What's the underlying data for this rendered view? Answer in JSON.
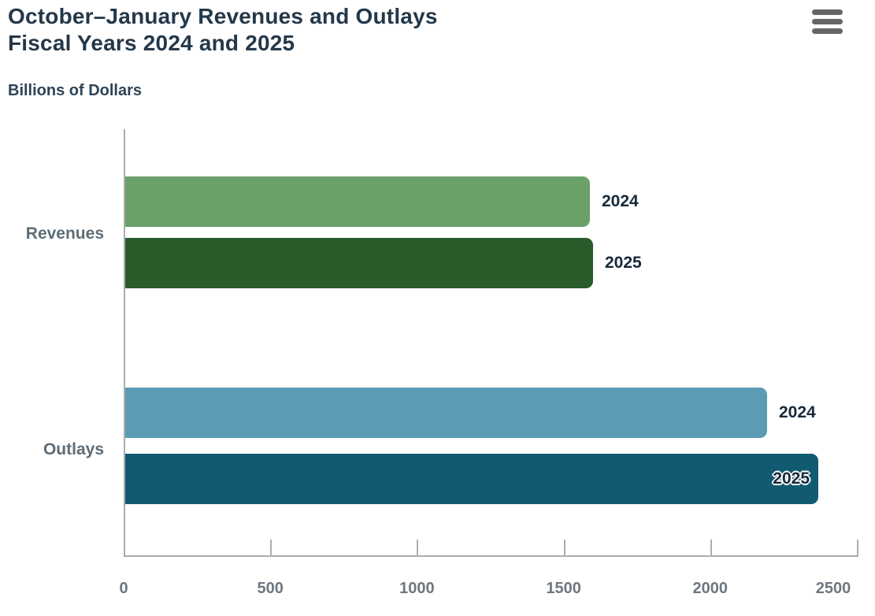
{
  "header": {
    "title_line1": "October–January Revenues and Outlays",
    "title_line2": "Fiscal Years 2024 and 2025",
    "units_label": "Billions of Dollars"
  },
  "icons": {
    "menu": "hamburger-menu-icon"
  },
  "colors": {
    "title": "#24384A",
    "subtitle": "#2E4456",
    "category_label": "#5E6C76",
    "tick_label": "#6E7780",
    "data_label": "#16293A",
    "axis_line": "#ADADAD",
    "menu_icon": "#666666",
    "revenues_2024": "#6AA169",
    "revenues_2025": "#2A5C2B",
    "outlays_2024": "#5C9BB4",
    "outlays_2025": "#115B72"
  },
  "chart_data": {
    "type": "bar",
    "orientation": "horizontal",
    "title": "October–January Revenues and Outlays, Fiscal Years 2024 and 2025",
    "ylabel": "Billions of Dollars",
    "xlim": [
      0,
      2500
    ],
    "x_ticks": [
      0,
      500,
      1000,
      1500,
      2000,
      2500
    ],
    "grid": false,
    "legend": false,
    "categories": [
      "Revenues",
      "Outlays"
    ],
    "groups": [
      {
        "category": "Revenues",
        "bars": [
          {
            "series": "2024",
            "value": 1585,
            "color": "#6AA169",
            "label_placement": "outside"
          },
          {
            "series": "2025",
            "value": 1596,
            "color": "#2A5C2B",
            "label_placement": "outside"
          }
        ]
      },
      {
        "category": "Outlays",
        "bars": [
          {
            "series": "2024",
            "value": 2188,
            "color": "#5C9BB4",
            "label_placement": "outside"
          },
          {
            "series": "2025",
            "value": 2362,
            "color": "#115B72",
            "label_placement": "inside"
          }
        ]
      }
    ]
  }
}
